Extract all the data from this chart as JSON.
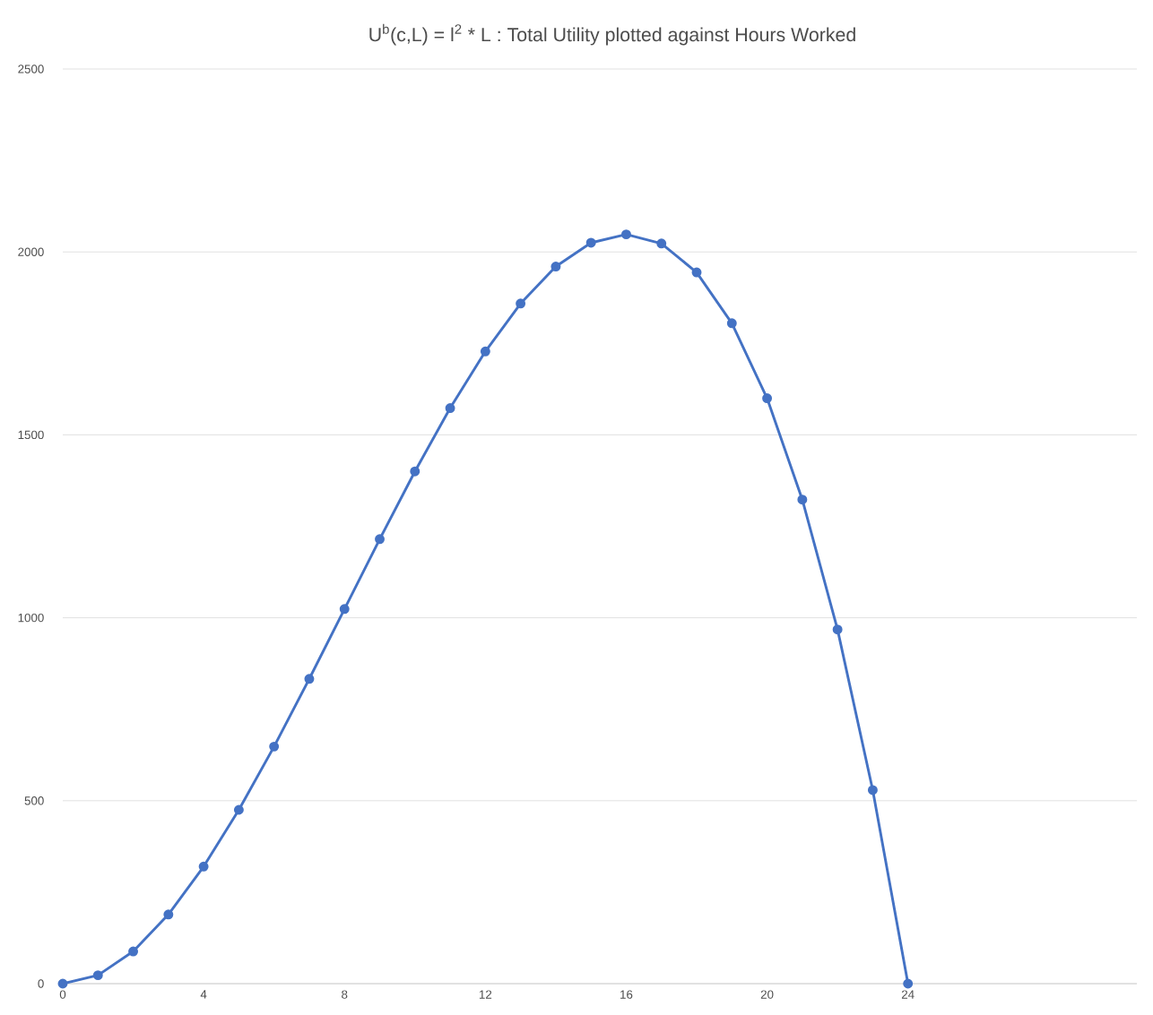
{
  "chart_data": {
    "type": "line",
    "title": "U$^{b}$(c,L) = l$^{2}$ * L   :  Total Utility plotted against Hours Worked",
    "x": [
      0,
      1,
      2,
      3,
      4,
      5,
      6,
      7,
      8,
      9,
      10,
      11,
      12,
      13,
      14,
      15,
      16,
      17,
      18,
      19,
      20,
      21,
      22,
      23,
      24
    ],
    "series": [
      {
        "color": "#4472c4",
        "values": [
          0,
          23,
          88,
          189,
          320,
          475,
          648,
          833,
          1024,
          1215,
          1400,
          1573,
          1728,
          1859,
          1960,
          2025,
          2048,
          2023,
          1944,
          1805,
          1600,
          1323,
          968,
          529,
          0
        ]
      }
    ],
    "xlim": [
      0,
      30.5
    ],
    "xticks": [
      0,
      4,
      8,
      12,
      16,
      20,
      24
    ],
    "ylim": [
      0,
      2500
    ],
    "yticks": [
      0,
      500,
      1000,
      1500,
      2000,
      2500
    ],
    "grid": "y",
    "marker": "circle",
    "line_style": "solid"
  }
}
